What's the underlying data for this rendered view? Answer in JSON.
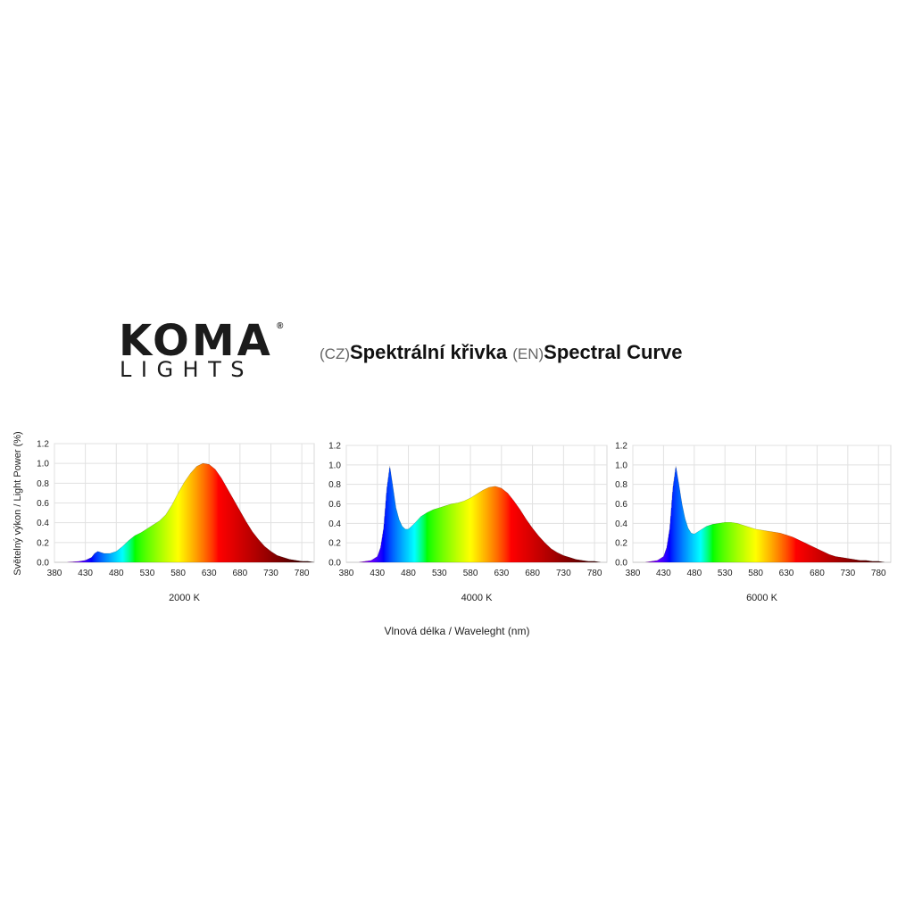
{
  "brand": {
    "logo_main": "KOMA",
    "logo_sub": "LIGHTS",
    "logo_mark": "®"
  },
  "header": {
    "cz_tag": "(CZ)",
    "cz_title": "Spektrální křivka",
    "en_tag": "(EN)",
    "en_title": "Spectral Curve"
  },
  "axes": {
    "ylabel": "Světelný výkon / Light Power (%)",
    "xlabel": "Vlnová délka / Waveleght (nm)"
  },
  "chart_data": [
    {
      "type": "area",
      "label": "2000 K",
      "xlabel": "Vlnová délka / Waveleght (nm)",
      "ylabel": "Světelný výkon / Light Power (%)",
      "xlim": [
        380,
        800
      ],
      "ylim": [
        0,
        1.2
      ],
      "xticks": [
        380,
        430,
        480,
        530,
        580,
        630,
        680,
        730,
        780
      ],
      "yticks": [
        0.0,
        0.2,
        0.4,
        0.6,
        0.8,
        1.0,
        1.2
      ],
      "grid": true,
      "x": [
        380,
        400,
        420,
        430,
        440,
        445,
        450,
        455,
        460,
        470,
        480,
        490,
        500,
        510,
        520,
        530,
        540,
        550,
        560,
        570,
        580,
        590,
        600,
        610,
        620,
        630,
        640,
        650,
        660,
        670,
        680,
        690,
        700,
        710,
        720,
        730,
        740,
        750,
        760,
        770,
        780,
        790,
        800
      ],
      "y": [
        0.0,
        0.0,
        0.01,
        0.02,
        0.05,
        0.09,
        0.11,
        0.1,
        0.09,
        0.09,
        0.11,
        0.16,
        0.22,
        0.27,
        0.3,
        0.34,
        0.38,
        0.42,
        0.48,
        0.58,
        0.7,
        0.81,
        0.9,
        0.97,
        1.0,
        0.99,
        0.94,
        0.85,
        0.74,
        0.63,
        0.52,
        0.41,
        0.31,
        0.23,
        0.16,
        0.11,
        0.07,
        0.05,
        0.03,
        0.02,
        0.01,
        0.01,
        0.0
      ]
    },
    {
      "type": "area",
      "label": "4000 K",
      "xlabel": "Vlnová délka / Waveleght (nm)",
      "ylabel": "Světelný výkon / Light Power (%)",
      "xlim": [
        380,
        800
      ],
      "ylim": [
        0,
        1.2
      ],
      "xticks": [
        380,
        430,
        480,
        530,
        580,
        630,
        680,
        730,
        780
      ],
      "yticks": [
        0.0,
        0.2,
        0.4,
        0.6,
        0.8,
        1.0,
        1.2
      ],
      "grid": true,
      "x": [
        380,
        400,
        420,
        430,
        435,
        440,
        445,
        450,
        455,
        460,
        465,
        470,
        475,
        480,
        490,
        500,
        510,
        520,
        530,
        540,
        550,
        560,
        570,
        580,
        590,
        600,
        610,
        620,
        630,
        640,
        650,
        660,
        670,
        680,
        690,
        700,
        710,
        720,
        730,
        740,
        750,
        760,
        770,
        780,
        790,
        800
      ],
      "y": [
        0.0,
        0.0,
        0.02,
        0.06,
        0.15,
        0.35,
        0.75,
        0.99,
        0.78,
        0.56,
        0.44,
        0.37,
        0.34,
        0.34,
        0.4,
        0.47,
        0.51,
        0.54,
        0.56,
        0.58,
        0.6,
        0.61,
        0.63,
        0.66,
        0.7,
        0.74,
        0.77,
        0.78,
        0.76,
        0.71,
        0.63,
        0.54,
        0.44,
        0.35,
        0.27,
        0.2,
        0.14,
        0.1,
        0.07,
        0.05,
        0.03,
        0.02,
        0.01,
        0.01,
        0.0,
        0.0
      ]
    },
    {
      "type": "area",
      "label": "6000 K",
      "xlabel": "Vlnová délka / Waveleght (nm)",
      "ylabel": "Světelný výkon / Light Power (%)",
      "xlim": [
        380,
        800
      ],
      "ylim": [
        0,
        1.2
      ],
      "xticks": [
        380,
        430,
        480,
        530,
        580,
        630,
        680,
        730,
        780
      ],
      "yticks": [
        0.0,
        0.2,
        0.4,
        0.6,
        0.8,
        1.0,
        1.2
      ],
      "grid": true,
      "x": [
        380,
        400,
        420,
        430,
        435,
        440,
        445,
        450,
        455,
        460,
        465,
        470,
        475,
        480,
        490,
        500,
        510,
        520,
        530,
        540,
        550,
        560,
        570,
        580,
        590,
        600,
        610,
        620,
        630,
        640,
        650,
        660,
        670,
        680,
        690,
        700,
        710,
        720,
        730,
        740,
        750,
        760,
        770,
        780,
        790,
        800
      ],
      "y": [
        0.0,
        0.0,
        0.02,
        0.06,
        0.15,
        0.35,
        0.76,
        0.99,
        0.8,
        0.6,
        0.45,
        0.35,
        0.3,
        0.29,
        0.33,
        0.37,
        0.39,
        0.4,
        0.41,
        0.41,
        0.4,
        0.38,
        0.36,
        0.34,
        0.33,
        0.32,
        0.31,
        0.3,
        0.28,
        0.26,
        0.23,
        0.2,
        0.17,
        0.14,
        0.11,
        0.08,
        0.06,
        0.05,
        0.04,
        0.03,
        0.02,
        0.02,
        0.01,
        0.01,
        0.0,
        0.0
      ]
    }
  ]
}
